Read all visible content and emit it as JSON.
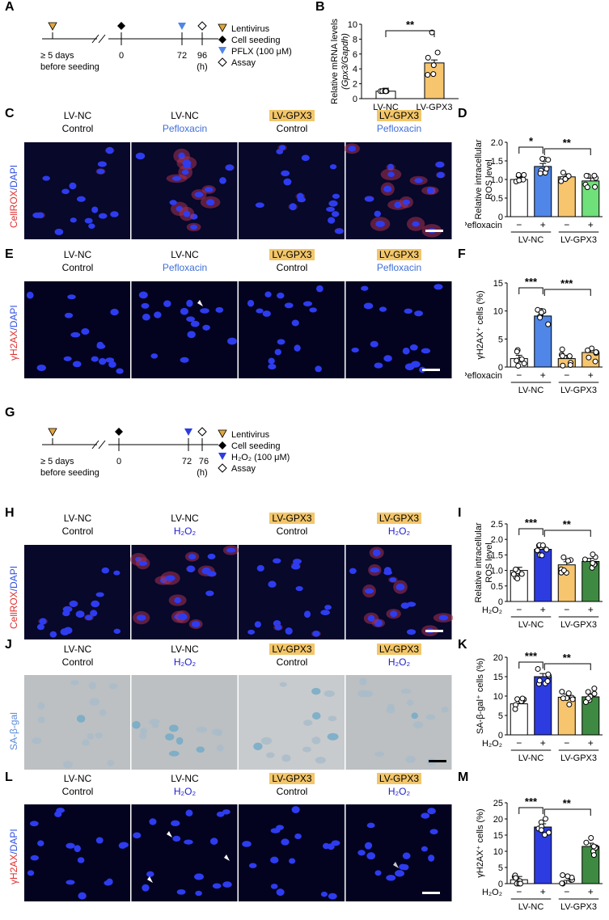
{
  "panels": [
    "A",
    "B",
    "C",
    "D",
    "E",
    "F",
    "G",
    "H",
    "I",
    "J",
    "K",
    "L",
    "M"
  ],
  "timeline_a": {
    "ticks": [
      "0",
      "72",
      "96"
    ],
    "unit": "(h)",
    "left_label": [
      "≥ 5 days",
      "before seeding"
    ],
    "legend": [
      "Lentivirus",
      "Cell seeding",
      "PFLX (100 μM)",
      "Assay"
    ]
  },
  "timeline_g": {
    "ticks": [
      "0",
      "72",
      "76"
    ],
    "unit": "(h)",
    "left_label": [
      "≥ 5 days",
      "before seeding"
    ],
    "legend": [
      "Lentivirus",
      "Cell seeding",
      "H₂O₂ (100 μM)",
      "Assay"
    ]
  },
  "groups": {
    "lvnc": "LV-NC",
    "lvgpx3": "LV-GPX3",
    "control": "Control",
    "pefloxacin": "Pefloxacin",
    "h2o2": "H₂O₂"
  },
  "stain_labels": {
    "cellrox": "CellROX",
    "dapi": "/DAPI",
    "h2ax": "γH2AX",
    "sagal": "SA-β-gal"
  },
  "colors": {
    "white_bar": "#ffffff",
    "blue_bar": "#4f86e8",
    "orange_bar": "#f6c56e",
    "green_bar": "#6fe07a",
    "dblue_bar": "#2d3ce0",
    "dgreen_bar": "#3f8a42",
    "hdr_box": "#f3c66a"
  },
  "chart_data": [
    {
      "panel": "B",
      "type": "bar",
      "categories": [
        "LV-NC",
        "LV-GPX3"
      ],
      "values": [
        1.0,
        4.8
      ],
      "points": [
        [
          1,
          1,
          1,
          1,
          1,
          1
        ],
        [
          3.2,
          3.3,
          4.5,
          5.5,
          6.2,
          8.9
        ]
      ],
      "ylabel": "Relative mRNA levels",
      "ylabel2": "(Gpx3/Gapdh)",
      "ylim": [
        0,
        10
      ],
      "yticks": [
        "0",
        "2",
        "4",
        "6",
        "8",
        "10"
      ],
      "sig": [
        "**"
      ]
    },
    {
      "panel": "D",
      "type": "bar",
      "categories": [
        "−",
        "+",
        "−",
        "+"
      ],
      "values": [
        1.0,
        1.35,
        1.07,
        0.96
      ],
      "ylabel": "Relative intracellular",
      "ylabel2": "ROS level",
      "ylim": [
        0,
        2.0
      ],
      "yticks": [
        "0",
        "0.5",
        "1.0",
        "1.5",
        "2.0"
      ],
      "sig": [
        "*",
        "**"
      ],
      "treatment": "Pefloxacin",
      "group_labels": [
        "LV-NC",
        "LV-GPX3"
      ]
    },
    {
      "panel": "F",
      "type": "bar",
      "categories": [
        "−",
        "+",
        "−",
        "+"
      ],
      "values": [
        1.5,
        9.1,
        1.5,
        2.6
      ],
      "ylabel": "γH2AX⁺ cells (%)",
      "ylim": [
        0,
        15
      ],
      "yticks": [
        "0",
        "5",
        "10",
        "15"
      ],
      "sig": [
        "***",
        "***"
      ],
      "treatment": "Pefloxacin",
      "group_labels": [
        "LV-NC",
        "LV-GPX3"
      ]
    },
    {
      "panel": "I",
      "type": "bar",
      "categories": [
        "−",
        "+",
        "−",
        "+"
      ],
      "values": [
        1.0,
        1.68,
        1.18,
        1.29
      ],
      "ylabel": "Relative intracellular",
      "ylabel2": "ROS level",
      "ylim": [
        0,
        2.5
      ],
      "yticks": [
        "0",
        "0.5",
        "1.0",
        "1.5",
        "2.0",
        "2.5"
      ],
      "sig": [
        "***",
        "**"
      ],
      "treatment": "H₂O₂",
      "group_labels": [
        "LV-NC",
        "LV-GPX3"
      ]
    },
    {
      "panel": "K",
      "type": "bar",
      "categories": [
        "−",
        "+",
        "−",
        "+"
      ],
      "values": [
        8.0,
        15.0,
        9.7,
        9.8
      ],
      "ylabel": "SA-β-gal⁺ cells (%)",
      "ylim": [
        0,
        20
      ],
      "yticks": [
        "0",
        "5",
        "10",
        "15",
        "20"
      ],
      "sig": [
        "***",
        "**"
      ],
      "treatment": "H₂O₂",
      "group_labels": [
        "LV-NC",
        "LV-GPX3"
      ]
    },
    {
      "panel": "M",
      "type": "bar",
      "categories": [
        "−",
        "+",
        "−",
        "+"
      ],
      "values": [
        1.2,
        17.5,
        0.0,
        11.5
      ],
      "ylabel": "γH2AX⁺ cells (%)",
      "ylim": [
        0,
        25
      ],
      "yticks": [
        "0",
        "5",
        "10",
        "15",
        "20",
        "25"
      ],
      "sig": [
        "***",
        "**"
      ],
      "treatment": "H₂O₂",
      "group_labels": [
        "LV-NC",
        "LV-GPX3"
      ]
    }
  ]
}
